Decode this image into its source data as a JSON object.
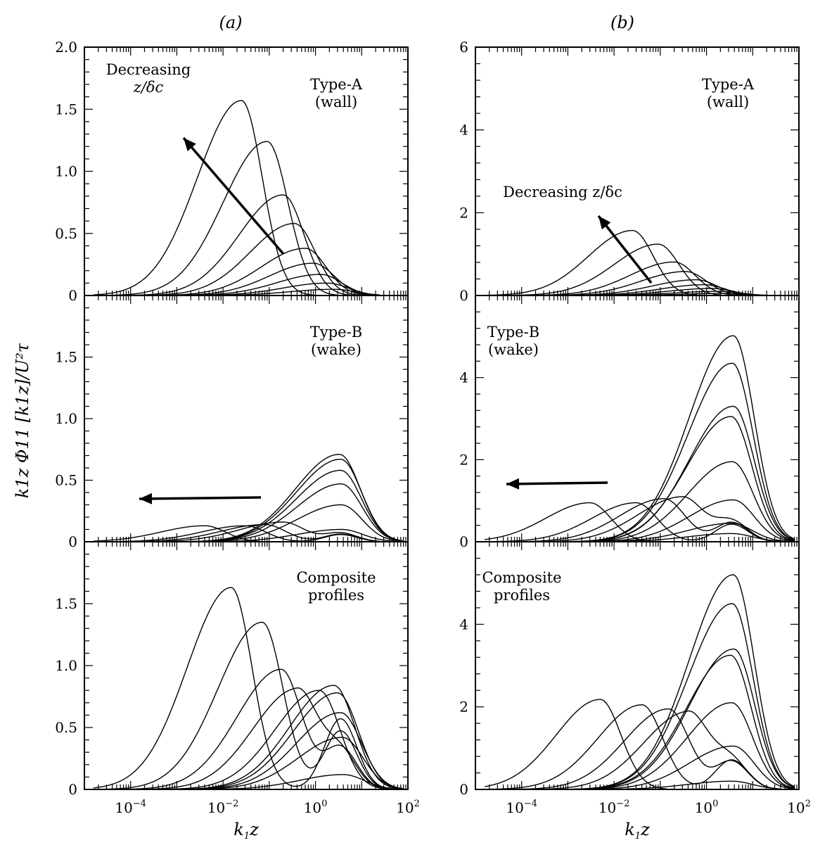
{
  "figure": {
    "column_labels": [
      "(a)",
      "(b)"
    ],
    "xlabel": "k1z",
    "xlabel_main": "k",
    "xlabel_sub": "1",
    "xlabel_tail": "z",
    "ylabel": "k1z Φ11 [k1z]/U²τ",
    "x_tick_labels": [
      {
        "base": "10",
        "exp": "−4"
      },
      {
        "base": "10",
        "exp": "−2"
      },
      {
        "base": "10",
        "exp": "0"
      },
      {
        "base": "10",
        "exp": "2"
      }
    ]
  },
  "chart_data": [
    {
      "type": "line",
      "column": "a",
      "row": 0,
      "title": "Type-A",
      "subtitle": "(wall)",
      "annotation": "Decreasing",
      "annotation2": "z/δc",
      "xscale": "log",
      "xlim": [
        1e-05,
        100
      ],
      "ylim": [
        0,
        2.0
      ],
      "y_ticks": [
        0,
        0.5,
        1.0,
        1.5,
        2.0
      ],
      "y_tick_labels": [
        "0",
        "0.5",
        "1.0",
        "1.5",
        "2.0"
      ],
      "series": [
        {
          "peak_x": 0.025,
          "peak_y": 1.57
        },
        {
          "peak_x": 0.09,
          "peak_y": 1.24
        },
        {
          "peak_x": 0.2,
          "peak_y": 0.81
        },
        {
          "peak_x": 0.35,
          "peak_y": 0.58
        },
        {
          "peak_x": 0.6,
          "peak_y": 0.38
        },
        {
          "peak_x": 0.9,
          "peak_y": 0.26
        },
        {
          "peak_x": 1.3,
          "peak_y": 0.17
        },
        {
          "peak_x": 1.8,
          "peak_y": 0.1
        },
        {
          "peak_x": 2.5,
          "peak_y": 0.05
        }
      ]
    },
    {
      "type": "line",
      "column": "a",
      "row": 1,
      "title": "Type-B",
      "subtitle": "(wake)",
      "xscale": "log",
      "xlim": [
        1e-05,
        100
      ],
      "ylim": [
        0,
        2.0
      ],
      "y_ticks": [
        0,
        0.5,
        1.0,
        1.5
      ],
      "y_tick_labels": [
        "0",
        "0.5",
        "1.0",
        "1.5"
      ],
      "series": [
        {
          "peak_x": 0.004,
          "peak_y": 0.13
        },
        {
          "peak_x": 0.03,
          "peak_y": 0.13
        },
        {
          "peak_x": 0.08,
          "peak_y": 0.14
        },
        {
          "peak_x": 0.2,
          "peak_y": 0.16
        },
        {
          "peak_x": 3.3,
          "peak_y": 0.71
        },
        {
          "peak_x": 3.5,
          "peak_y": 0.67
        },
        {
          "peak_x": 3.5,
          "peak_y": 0.58
        },
        {
          "peak_x": 3.6,
          "peak_y": 0.47
        },
        {
          "peak_x": 3.6,
          "peak_y": 0.3
        },
        {
          "peak_x": 3.7,
          "peak_y": 0.1
        }
      ]
    },
    {
      "type": "line",
      "column": "a",
      "row": 2,
      "title": "Composite",
      "subtitle": "profiles",
      "xscale": "log",
      "xlim": [
        1e-05,
        100
      ],
      "ylim": [
        0,
        2.0
      ],
      "y_ticks": [
        0,
        0.5,
        1.0,
        1.5
      ],
      "y_tick_labels": [
        "0",
        "0.5",
        "1.0",
        "1.5"
      ],
      "series": [
        {
          "peak_x": 0.015,
          "peak_y": 1.63
        },
        {
          "peak_x": 0.07,
          "peak_y": 1.35
        },
        {
          "peak_x": 0.18,
          "peak_y": 0.97
        },
        {
          "peak_x": 0.4,
          "peak_y": 0.82
        },
        {
          "peak_x": 1.2,
          "peak_y": 0.8
        },
        {
          "peak_x": 2.5,
          "peak_y": 0.84
        },
        {
          "peak_x": 3.0,
          "peak_y": 0.78
        },
        {
          "peak_x": 3.5,
          "peak_y": 0.62
        },
        {
          "peak_x": 3.8,
          "peak_y": 0.42
        },
        {
          "peak_x": 4.0,
          "peak_y": 0.12
        }
      ]
    },
    {
      "type": "line",
      "column": "b",
      "row": 0,
      "title": "Type-A",
      "subtitle": "(wall)",
      "annotation": "Decreasing z/δc",
      "xscale": "log",
      "xlim": [
        1e-05,
        100
      ],
      "ylim": [
        0,
        6
      ],
      "y_ticks": [
        0,
        2,
        4,
        6
      ],
      "y_tick_labels": [
        "0",
        "2",
        "4",
        "6"
      ],
      "series": [
        {
          "peak_x": 0.025,
          "peak_y": 1.57
        },
        {
          "peak_x": 0.09,
          "peak_y": 1.24
        },
        {
          "peak_x": 0.2,
          "peak_y": 0.81
        },
        {
          "peak_x": 0.35,
          "peak_y": 0.58
        },
        {
          "peak_x": 0.6,
          "peak_y": 0.38
        },
        {
          "peak_x": 0.9,
          "peak_y": 0.26
        },
        {
          "peak_x": 1.3,
          "peak_y": 0.17
        },
        {
          "peak_x": 1.8,
          "peak_y": 0.1
        },
        {
          "peak_x": 2.5,
          "peak_y": 0.05
        }
      ]
    },
    {
      "type": "line",
      "column": "b",
      "row": 1,
      "title": "Type-B",
      "subtitle": "(wake)",
      "xscale": "log",
      "xlim": [
        1e-05,
        100
      ],
      "ylim": [
        0,
        6
      ],
      "y_ticks": [
        0,
        2,
        4
      ],
      "y_tick_labels": [
        "0",
        "2",
        "4"
      ],
      "series": [
        {
          "peak_x": 0.003,
          "peak_y": 0.95
        },
        {
          "peak_x": 0.03,
          "peak_y": 0.95
        },
        {
          "peak_x": 0.12,
          "peak_y": 1.05
        },
        {
          "peak_x": 0.3,
          "peak_y": 1.1
        },
        {
          "peak_x": 3.8,
          "peak_y": 5.02
        },
        {
          "peak_x": 3.6,
          "peak_y": 4.35
        },
        {
          "peak_x": 3.8,
          "peak_y": 3.3
        },
        {
          "peak_x": 3.4,
          "peak_y": 3.05
        },
        {
          "peak_x": 3.6,
          "peak_y": 1.95
        },
        {
          "peak_x": 3.8,
          "peak_y": 1.02
        },
        {
          "peak_x": 3.5,
          "peak_y": 0.45
        },
        {
          "peak_x": 3.5,
          "peak_y": 0.2
        }
      ]
    },
    {
      "type": "line",
      "column": "b",
      "row": 2,
      "title": "Composite",
      "subtitle": "profiles",
      "xscale": "log",
      "xlim": [
        1e-05,
        100
      ],
      "ylim": [
        0,
        6
      ],
      "y_ticks": [
        0,
        2,
        4
      ],
      "y_tick_labels": [
        "0",
        "2",
        "4"
      ],
      "series": [
        {
          "peak_x": 0.005,
          "peak_y": 2.18
        },
        {
          "peak_x": 0.04,
          "peak_y": 2.05
        },
        {
          "peak_x": 0.15,
          "peak_y": 1.95
        },
        {
          "peak_x": 0.4,
          "peak_y": 1.9
        },
        {
          "peak_x": 3.8,
          "peak_y": 5.2
        },
        {
          "peak_x": 3.6,
          "peak_y": 4.5
        },
        {
          "peak_x": 3.9,
          "peak_y": 3.4
        },
        {
          "peak_x": 3.3,
          "peak_y": 3.25
        },
        {
          "peak_x": 3.5,
          "peak_y": 2.1
        },
        {
          "peak_x": 3.8,
          "peak_y": 1.05
        },
        {
          "peak_x": 3.5,
          "peak_y": 0.2
        }
      ]
    }
  ]
}
